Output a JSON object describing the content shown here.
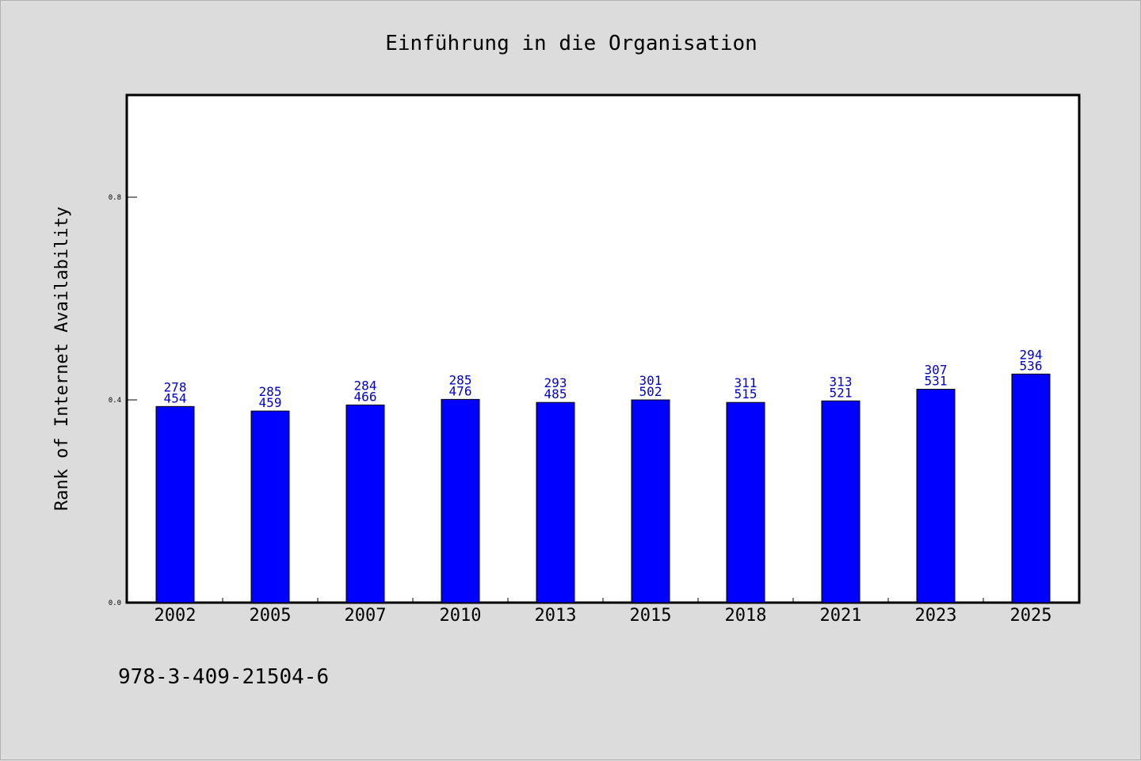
{
  "chart_data": {
    "type": "bar",
    "title": "Einführung in die Organisation",
    "xlabel": "",
    "ylabel": "Rank of Internet Availability",
    "ylim": [
      0,
      1.0
    ],
    "yticks": [
      0.0,
      0.4,
      0.8
    ],
    "ytick_labels": [
      "0.0",
      "0.4",
      "0.8"
    ],
    "grid": false,
    "categories": [
      "2002",
      "2005",
      "2007",
      "2010",
      "2013",
      "2015",
      "2018",
      "2021",
      "2023",
      "2025"
    ],
    "values": [
      0.387,
      0.378,
      0.39,
      0.401,
      0.395,
      0.4,
      0.395,
      0.398,
      0.421,
      0.451
    ],
    "data_labels_top": [
      "278",
      "285",
      "284",
      "285",
      "293",
      "301",
      "311",
      "313",
      "307",
      "294"
    ],
    "data_labels_bottom": [
      "454",
      "459",
      "466",
      "476",
      "485",
      "502",
      "515",
      "521",
      "531",
      "536"
    ],
    "bar_color": "#0000ff",
    "label_color": "#0000cc"
  },
  "footer_text": "978-3-409-21504-6"
}
